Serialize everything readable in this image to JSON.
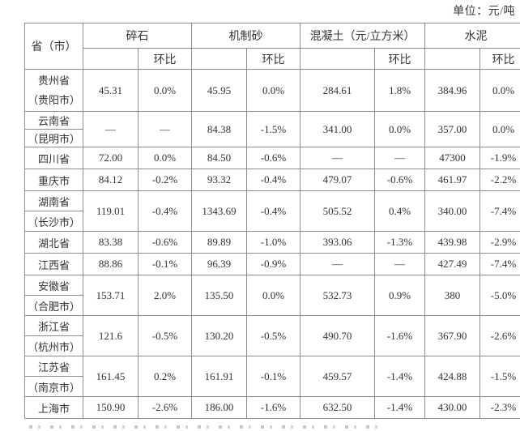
{
  "unit_label": "单位：元/吨",
  "table": {
    "corner_header": "省（市）",
    "groups": [
      {
        "label": "碎石"
      },
      {
        "label": "机制砂"
      },
      {
        "label": "混凝土（元/立方米）"
      },
      {
        "label": "水泥"
      }
    ],
    "subheader_label": "环比",
    "missing_value": "—",
    "rows": [
      {
        "province": "贵州省",
        "city": "（贵阳市）",
        "divider": false,
        "values": [
          "45.31",
          "0.0%",
          "45.95",
          "0.0%",
          "284.61",
          "1.8%",
          "384.96",
          "0.0%"
        ]
      },
      {
        "province": "云南省",
        "city": "（昆明市）",
        "divider": true,
        "compact": true,
        "values": [
          "—",
          "—",
          "84.38",
          "-1.5%",
          "341.00",
          "0.0%",
          "357.00",
          "0.0%"
        ]
      },
      {
        "province": "四川省",
        "values": [
          "72.00",
          "0.0%",
          "84.50",
          "-0.6%",
          "—",
          "—",
          "47300",
          "-1.9%"
        ]
      },
      {
        "province": "重庆市",
        "values": [
          "84.12",
          "-0.2%",
          "93.32",
          "-0.4%",
          "479.07",
          "-0.6%",
          "461.97",
          "-2.2%"
        ]
      },
      {
        "province": "湖南省",
        "city": "（长沙市）",
        "divider": true,
        "values": [
          "119.01",
          "-0.4%",
          "1343.69",
          "-0.4%",
          "505.52",
          "0.4%",
          "340.00",
          "-7.4%"
        ]
      },
      {
        "province": "湖北省",
        "values": [
          "83.38",
          "-0.6%",
          "89.89",
          "-1.0%",
          "393.06",
          "-1.3%",
          "439.98",
          "-2.9%"
        ]
      },
      {
        "province": "江西省",
        "values": [
          "88.86",
          "-0.1%",
          "96.39",
          "-0.9%",
          "—",
          "—",
          "427.49",
          "-7.4%"
        ]
      },
      {
        "province": "安徽省",
        "city": "（合肥市）",
        "divider": true,
        "values": [
          "153.71",
          "2.0%",
          "135.50",
          "0.0%",
          "532.73",
          "0.9%",
          "380",
          "-5.0%"
        ]
      },
      {
        "province": "浙江省",
        "city": "（杭州市）",
        "divider": true,
        "values": [
          "121.6",
          "-0.5%",
          "130.20",
          "-0.5%",
          "490.70",
          "-1.6%",
          "367.90",
          "-2.6%"
        ]
      },
      {
        "province": "江苏省",
        "city": "（南京市）",
        "divider": true,
        "values": [
          "161.45",
          "0.2%",
          "161.91",
          "-0.1%",
          "459.57",
          "-1.4%",
          "424.88",
          "-1.5%"
        ]
      },
      {
        "province": "上海市",
        "values": [
          "150.90",
          "-2.6%",
          "186.00",
          "-1.6%",
          "632.50",
          "-1.4%",
          "430.00",
          "-2.3%"
        ]
      }
    ]
  }
}
